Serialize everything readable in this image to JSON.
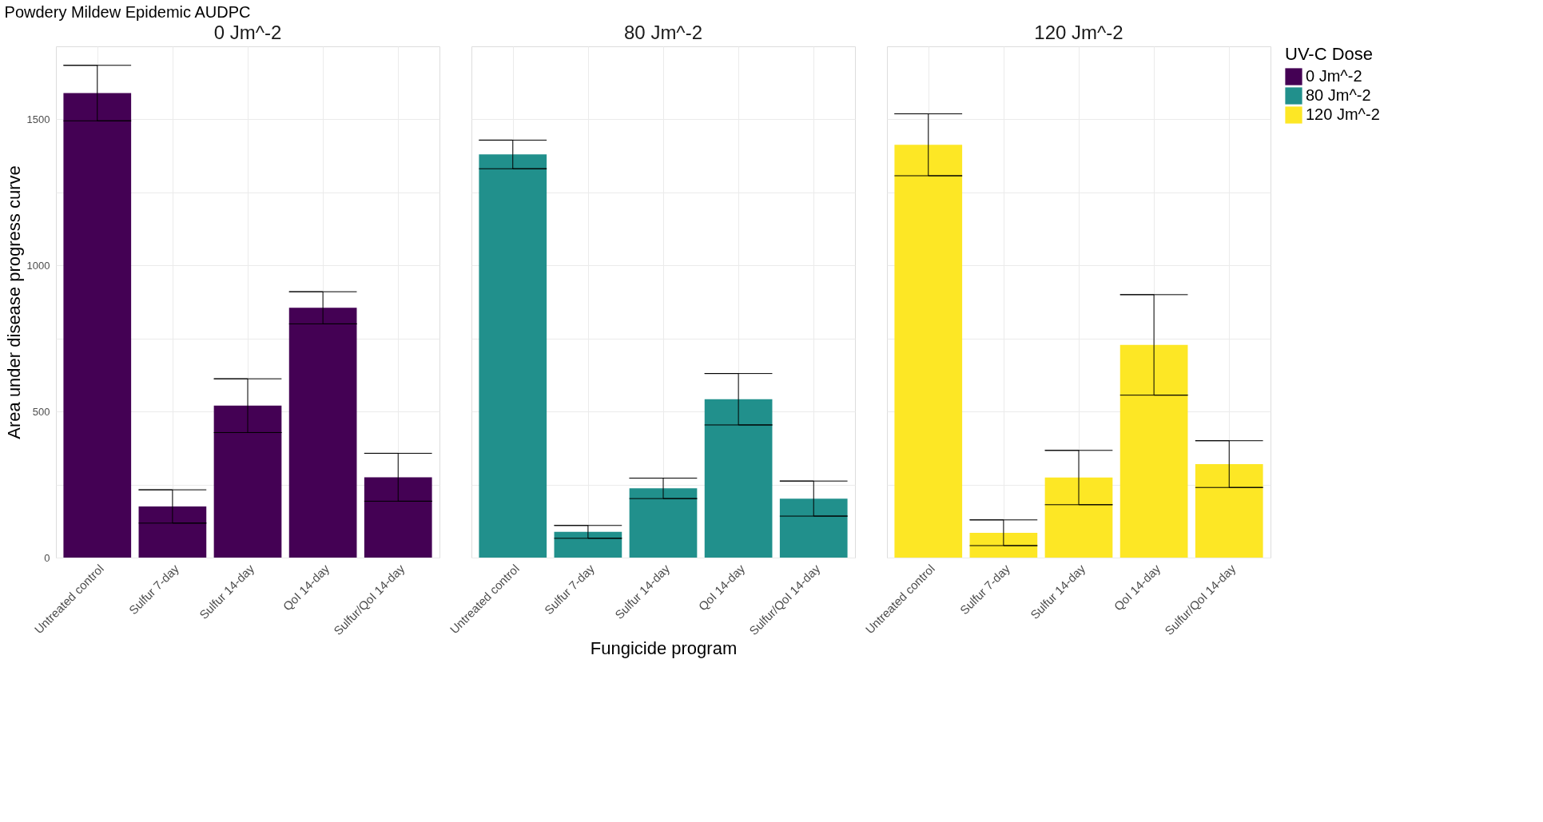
{
  "chart_data": [
    {
      "type": "bar",
      "title": "Powdery Mildew Epidemic AUDPC",
      "subtitle": "0 Jm^-2",
      "ylabel": "Area under disease progress curve",
      "categories": [
        "Untreated control",
        "Sulfur 7-day",
        "Sulfur 14-day",
        "QoI 14-day",
        "Sulfur/QoI 14-day"
      ],
      "series": [
        {
          "name": "0 Jm^-2",
          "color": "#440154",
          "values": [
            1590,
            175,
            520,
            855,
            275
          ],
          "errors": [
            95,
            57,
            92,
            55,
            82
          ]
        }
      ],
      "ylim": [
        0,
        1750
      ],
      "yticks": [
        0,
        {
          "value": 250,
          "label": null
        },
        500,
        {
          "value": 750,
          "label": null
        },
        1000,
        {
          "value": 1250,
          "label": null
        },
        1500
      ],
      "grid": true
    },
    {
      "type": "bar",
      "subtitle": "80 Jm^-2",
      "xlabel": "Fungicide program",
      "categories": [
        "Untreated control",
        "Sulfur 7-day",
        "Sulfur 14-day",
        "QoI 14-day",
        "Sulfur/QoI 14-day"
      ],
      "series": [
        {
          "name": "80 Jm^-2",
          "color": "#21908c",
          "values": [
            1380,
            88,
            237,
            542,
            202
          ],
          "errors": [
            49,
            22,
            35,
            88,
            60
          ]
        }
      ],
      "ylim": [
        0,
        1750
      ],
      "yticks": [
        0,
        {
          "value": 250,
          "label": null
        },
        500,
        {
          "value": 750,
          "label": null
        },
        1000,
        {
          "value": 1250,
          "label": null
        },
        1500
      ],
      "grid": true,
      "tick_labels": "x"
    },
    {
      "type": "bar",
      "subtitle": "120 Jm^-2",
      "legend_title": "UV-C Dose",
      "legend": "right",
      "categories": [
        "Untreated control",
        "Sulfur 7-day",
        "Sulfur 14-day",
        "QoI 14-day",
        "Sulfur/QoI 14-day"
      ],
      "series": [
        {
          "name": "120 Jm^-2",
          "color": "#fde725",
          "values": [
            1413,
            85,
            274,
            728,
            320
          ],
          "errors": [
            106,
            44,
            93,
            172,
            80
          ]
        }
      ],
      "ylim": [
        0,
        1750
      ],
      "yticks": [
        0,
        {
          "value": 250,
          "label": null
        },
        500,
        {
          "value": 750,
          "label": null
        },
        1000,
        {
          "value": 1250,
          "label": null
        },
        1500
      ],
      "grid": true,
      "tick_labels": "x"
    }
  ]
}
